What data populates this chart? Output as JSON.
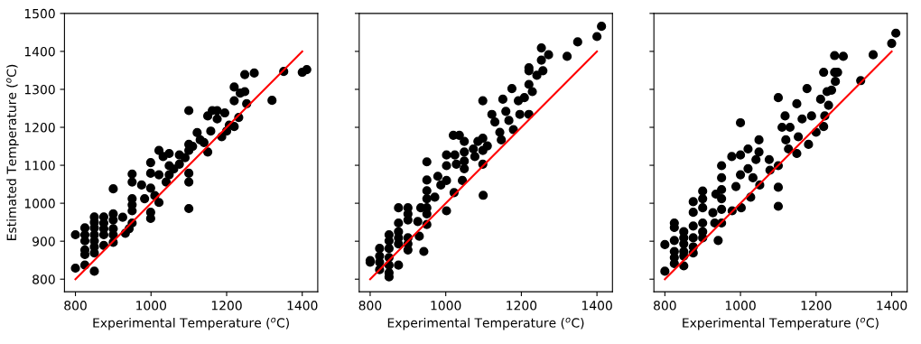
{
  "chart_data": [
    {
      "type": "scatter",
      "xlabel": "Experimental Temperature ($^{o}$C)",
      "ylabel": "Estimated Temperature ($^{o}$C)",
      "xlim": [
        771,
        1441
      ],
      "ylim": [
        767,
        1500
      ],
      "xticks": [
        800,
        1000,
        1200,
        1400
      ],
      "yticks": [
        800,
        900,
        1000,
        1100,
        1200,
        1300,
        1400,
        1500
      ],
      "series": [
        {
          "marker": "circle",
          "color": "#000000",
          "x": [
            800,
            800,
            825,
            825,
            825,
            825,
            825,
            825,
            850,
            850,
            850,
            850,
            850,
            850,
            850,
            850,
            875,
            875,
            875,
            875,
            875,
            900,
            900,
            900,
            900,
            900,
            900,
            925,
            932,
            942,
            950,
            950,
            950,
            950,
            950,
            950,
            975,
            983,
            999,
            999,
            999,
            999,
            999,
            1021,
            1021,
            1021,
            1032,
            1040,
            1048,
            1048,
            1048,
            1075,
            1075,
            1100,
            1100,
            1100,
            1100,
            1100,
            1100,
            1122,
            1130,
            1150,
            1150,
            1158,
            1162,
            1175,
            1175,
            1187,
            1195,
            1207,
            1220,
            1220,
            1220,
            1232,
            1236,
            1248,
            1248,
            1253,
            1273,
            1320,
            1351,
            1400,
            1412,
            1110,
            1090,
            1140,
            1060,
            1010,
            1200
          ],
          "values": [
            917,
            829,
            935,
            917,
            901,
            877,
            865,
            837,
            964,
            950,
            935,
            917,
            901,
            885,
            869,
            821,
            964,
            948,
            933,
            917,
            889,
            1038,
            972,
            956,
            933,
            917,
            897,
            963,
            921,
            933,
            1077,
            1056,
            1012,
            996,
            980,
            948,
            1048,
            1012,
            1040,
            1079,
            1107,
            976,
            960,
            1002,
            1139,
            1075,
            1123,
            1056,
            1131,
            1099,
            1075,
            1127,
            1103,
            1244,
            1155,
            1139,
            1079,
            1056,
            986,
            1186,
            1167,
            1135,
            1230,
            1190,
            1244,
            1244,
            1222,
            1175,
            1238,
            1206,
            1306,
            1270,
            1202,
            1226,
            1290,
            1294,
            1339,
            1262,
            1343,
            1271,
            1347,
            1345,
            1352,
            1150,
            1120,
            1160,
            1090,
            1020,
            1190
          ]
        },
        {
          "type": "line",
          "color": "#ff0000",
          "x": [
            800,
            1400
          ],
          "values": [
            800,
            1400
          ]
        }
      ]
    },
    {
      "type": "scatter",
      "xlabel": "Experimental Temperature ($^{o}$C)",
      "xlim": [
        771,
        1441
      ],
      "ylim": [
        767,
        1500
      ],
      "xticks": [
        800,
        1000,
        1200,
        1400
      ],
      "yticks": [
        800,
        900,
        1000,
        1100,
        1200,
        1300,
        1400,
        1500
      ],
      "tick_labels": "x",
      "series": [
        {
          "marker": "circle",
          "color": "#000000",
          "x": [
            800,
            800,
            825,
            825,
            825,
            825,
            850,
            850,
            850,
            850,
            850,
            850,
            850,
            875,
            875,
            875,
            875,
            875,
            875,
            900,
            900,
            900,
            900,
            900,
            900,
            926,
            930,
            934,
            942,
            950,
            950,
            950,
            950,
            950,
            950,
            950,
            971,
            979,
            987,
            1002,
            1002,
            1002,
            1002,
            1020,
            1024,
            1022,
            1028,
            1036,
            1049,
            1049,
            1049,
            1049,
            1044,
            1073,
            1077,
            1085,
            1098,
            1098,
            1098,
            1098,
            1099,
            1110,
            1122,
            1130,
            1143,
            1147,
            1151,
            1159,
            1167,
            1175,
            1179,
            1192,
            1196,
            1208,
            1220,
            1220,
            1220,
            1220,
            1229,
            1241,
            1253,
            1253,
            1257,
            1272,
            1321,
            1349,
            1400,
            1412
          ],
          "values": [
            849,
            845,
            881,
            861,
            845,
            825,
            917,
            901,
            881,
            857,
            837,
            817,
            806,
            988,
            948,
            925,
            909,
            893,
            837,
            988,
            972,
            956,
            909,
            893,
            877,
            952,
            913,
            988,
            873,
            1109,
            1061,
            1033,
            1012,
            988,
            972,
            944,
            1016,
            1071,
            1048,
            1127,
            1099,
            1060,
            980,
            1179,
            1127,
            1028,
            1103,
            1179,
            1163,
            1135,
            1111,
            1091,
            1060,
            1143,
            1123,
            1163,
            1270,
            1171,
            1139,
            1103,
            1021,
            1151,
            1234,
            1214,
            1187,
            1167,
            1274,
            1242,
            1218,
            1302,
            1194,
            1270,
            1234,
            1278,
            1234,
            1357,
            1349,
            1313,
            1294,
            1337,
            1409,
            1377,
            1349,
            1391,
            1387,
            1425,
            1439,
            1466
          ]
        },
        {
          "type": "line",
          "color": "#ff0000",
          "x": [
            800,
            1400
          ],
          "values": [
            800,
            1400
          ]
        }
      ]
    },
    {
      "type": "scatter",
      "xlabel": "Experimental Temperature ($^{o}$C)",
      "xlim": [
        771,
        1441
      ],
      "ylim": [
        767,
        1500
      ],
      "xticks": [
        800,
        1000,
        1200,
        1400
      ],
      "yticks": [
        800,
        900,
        1000,
        1100,
        1200,
        1300,
        1400,
        1500
      ],
      "tick_labels": "x",
      "series": [
        {
          "marker": "circle",
          "color": "#000000",
          "x": [
            800,
            800,
            825,
            825,
            825,
            825,
            825,
            825,
            850,
            850,
            850,
            850,
            850,
            850,
            875,
            875,
            875,
            875,
            875,
            875,
            900,
            900,
            900,
            900,
            900,
            900,
            927,
            935,
            932,
            941,
            950,
            950,
            950,
            950,
            950,
            950,
            977,
            978,
            988,
            1000,
            1000,
            1000,
            1002,
            1020,
            1020,
            1027,
            1033,
            1041,
            1049,
            1049,
            1051,
            1076,
            1078,
            1100,
            1100,
            1100,
            1100,
            1110,
            1118,
            1120,
            1127,
            1131,
            1149,
            1149,
            1153,
            1163,
            1176,
            1180,
            1188,
            1200,
            1212,
            1220,
            1220,
            1223,
            1229,
            1233,
            1241,
            1249,
            1249,
            1251,
            1257,
            1272,
            1318,
            1351,
            1400,
            1411
          ],
          "values": [
            891,
            821,
            948,
            936,
            902,
            873,
            857,
            841,
            925,
            909,
            893,
            873,
            835,
            861,
            1004,
            976,
            940,
            909,
            885,
            869,
            1032,
            1012,
            988,
            948,
            925,
            909,
            975,
            1024,
            948,
            902,
            1099,
            1067,
            1036,
            1012,
            984,
            948,
            1123,
            980,
            1044,
            1212,
            1127,
            1075,
            988,
            1143,
            1091,
            1016,
            1067,
            1115,
            1167,
            1135,
            1048,
            1115,
            1087,
            1099,
            1042,
            992,
            1278,
            1200,
            1230,
            1167,
            1143,
            1200,
            1131,
            1262,
            1175,
            1222,
            1302,
            1155,
            1230,
            1187,
            1274,
            1345,
            1202,
            1230,
            1294,
            1258,
            1298,
            1345,
            1389,
            1321,
            1345,
            1387,
            1323,
            1391,
            1421,
            1448
          ]
        },
        {
          "type": "line",
          "color": "#ff0000",
          "x": [
            800,
            1400
          ],
          "values": [
            800,
            1400
          ]
        }
      ]
    }
  ]
}
